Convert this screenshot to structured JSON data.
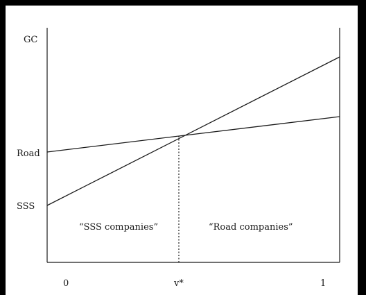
{
  "diagram": {
    "y_axis_label": "GC",
    "intercept_labels": {
      "road": "Road",
      "sss": "SSS"
    },
    "x_tick_labels": {
      "left": "0",
      "middle": "v*",
      "right": "1"
    },
    "region_labels": {
      "left": "“SSS companies”",
      "right": "“Road companies”"
    },
    "colors": {
      "frame": "#000000",
      "background": "#ffffff",
      "ink": "#1a1a1a"
    }
  }
}
